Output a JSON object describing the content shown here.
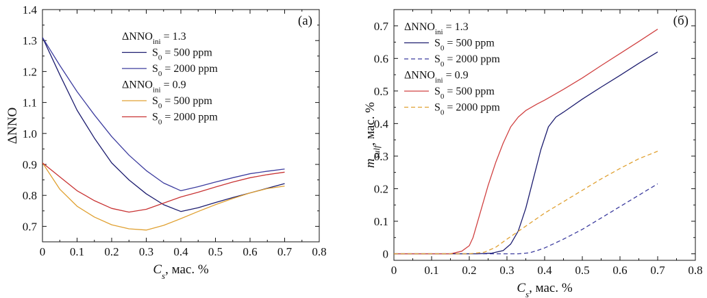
{
  "chart_data": [
    {
      "type": "line",
      "panel_label": "(a)",
      "xlabel": "C_s, мас. %",
      "xlabel_main": "C",
      "xlabel_sub": "s",
      "xlabel_rest": ", мас. %",
      "ylabel": "ΔNNO",
      "xlim": [
        0,
        0.8
      ],
      "ylim": [
        0.65,
        1.4
      ],
      "xticks": [
        "0",
        "0.1",
        "0.2",
        "0.3",
        "0.4",
        "0.5",
        "0.6",
        "0.7",
        "0.8"
      ],
      "yticks": [
        "0.7",
        "0.8",
        "0.9",
        "1.0",
        "1.1",
        "1.2",
        "1.3",
        "1.4"
      ],
      "legend": {
        "position": "top-right",
        "groups": [
          {
            "title": "ΔNNO",
            "title_sub": "ini",
            "title_rest": " = 1.3"
          },
          {
            "title": "ΔNNO",
            "title_sub": "ini",
            "title_rest": " = 0.9"
          }
        ],
        "entries": [
          {
            "prefix": "S",
            "sub": "0",
            "rest": " = 500 ppm"
          },
          {
            "prefix": "S",
            "sub": "0",
            "rest": " = 2000 ppm"
          },
          {
            "prefix": "S",
            "sub": "0",
            "rest": " = 500 ppm"
          },
          {
            "prefix": "S",
            "sub": "0",
            "rest": " = 2000 ppm"
          }
        ]
      },
      "series": [
        {
          "color": "#1b1b6e",
          "dash": "solid",
          "x": [
            0,
            0.05,
            0.1,
            0.15,
            0.2,
            0.25,
            0.3,
            0.35,
            0.4,
            0.45,
            0.5,
            0.55,
            0.6,
            0.65,
            0.7
          ],
          "y": [
            1.31,
            1.19,
            1.075,
            0.985,
            0.905,
            0.85,
            0.805,
            0.77,
            0.748,
            0.76,
            0.777,
            0.793,
            0.808,
            0.823,
            0.838
          ]
        },
        {
          "color": "#3b3b9e",
          "dash": "solid",
          "x": [
            0,
            0.05,
            0.1,
            0.15,
            0.2,
            0.25,
            0.3,
            0.35,
            0.4,
            0.45,
            0.5,
            0.55,
            0.6,
            0.65,
            0.7
          ],
          "y": [
            1.31,
            1.22,
            1.135,
            1.06,
            0.99,
            0.93,
            0.88,
            0.84,
            0.815,
            0.828,
            0.843,
            0.857,
            0.87,
            0.878,
            0.885
          ]
        },
        {
          "color": "#e0a030",
          "dash": "solid",
          "x": [
            0,
            0.05,
            0.1,
            0.15,
            0.2,
            0.25,
            0.3,
            0.35,
            0.4,
            0.45,
            0.5,
            0.55,
            0.6,
            0.65,
            0.7
          ],
          "y": [
            0.905,
            0.82,
            0.765,
            0.73,
            0.705,
            0.692,
            0.688,
            0.703,
            0.725,
            0.748,
            0.77,
            0.79,
            0.808,
            0.822,
            0.83
          ]
        },
        {
          "color": "#c83232",
          "dash": "solid",
          "x": [
            0,
            0.05,
            0.1,
            0.15,
            0.2,
            0.25,
            0.3,
            0.35,
            0.4,
            0.45,
            0.5,
            0.55,
            0.6,
            0.65,
            0.7
          ],
          "y": [
            0.905,
            0.86,
            0.815,
            0.783,
            0.758,
            0.746,
            0.755,
            0.775,
            0.795,
            0.81,
            0.827,
            0.843,
            0.857,
            0.867,
            0.875
          ]
        }
      ]
    },
    {
      "type": "line",
      "panel_label": "(б)",
      "xlabel": "C_s, мас. %",
      "xlabel_main": "C",
      "xlabel_sub": "s",
      "xlabel_rest": ", мас. %",
      "ylabel": "m_sulf, мас. %",
      "ylabel_main": "m",
      "ylabel_sub": "sulf",
      "ylabel_rest": ", мас. %",
      "xlim": [
        0,
        0.8
      ],
      "ylim": [
        -0.02,
        0.75
      ],
      "xticks": [
        "0",
        "0.1",
        "0.2",
        "0.3",
        "0.4",
        "0.5",
        "0.6",
        "0.7",
        "0.8"
      ],
      "yticks": [
        "0",
        "0.1",
        "0.2",
        "0.3",
        "0.4",
        "0.5",
        "0.6",
        "0.7"
      ],
      "legend": {
        "position": "top-left",
        "groups": [
          {
            "title": "ΔNNO",
            "title_sub": "ini",
            "title_rest": " = 1.3"
          },
          {
            "title": "ΔNNO",
            "title_sub": "ini",
            "title_rest": " = 0.9"
          }
        ],
        "entries": [
          {
            "prefix": "S",
            "sub": "0",
            "rest": " = 500 ppm"
          },
          {
            "prefix": "S",
            "sub": "0",
            "rest": " = 2000 ppm"
          },
          {
            "prefix": "S",
            "sub": "0",
            "rest": " = 500 ppm"
          },
          {
            "prefix": "S",
            "sub": "0",
            "rest": " = 2000 ppm"
          }
        ]
      },
      "series": [
        {
          "color": "#1b1b6e",
          "dash": "solid",
          "x": [
            0,
            0.22,
            0.26,
            0.29,
            0.31,
            0.33,
            0.35,
            0.37,
            0.39,
            0.41,
            0.43,
            0.45,
            0.5,
            0.55,
            0.6,
            0.65,
            0.7
          ],
          "y": [
            0,
            0,
            0.002,
            0.01,
            0.03,
            0.07,
            0.14,
            0.23,
            0.32,
            0.39,
            0.42,
            0.435,
            0.475,
            0.512,
            0.548,
            0.585,
            0.62
          ]
        },
        {
          "color": "#3b3b9e",
          "dash": "dashed",
          "x": [
            0,
            0.33,
            0.36,
            0.38,
            0.4,
            0.45,
            0.5,
            0.55,
            0.6,
            0.65,
            0.7
          ],
          "y": [
            0,
            0,
            0.003,
            0.01,
            0.018,
            0.045,
            0.075,
            0.11,
            0.145,
            0.18,
            0.215
          ]
        },
        {
          "color": "#d04040",
          "dash": "solid",
          "x": [
            0,
            0.15,
            0.18,
            0.2,
            0.21,
            0.23,
            0.25,
            0.27,
            0.29,
            0.31,
            0.33,
            0.35,
            0.38,
            0.4,
            0.45,
            0.5,
            0.55,
            0.6,
            0.65,
            0.7
          ],
          "y": [
            0,
            0,
            0.008,
            0.025,
            0.05,
            0.13,
            0.21,
            0.28,
            0.34,
            0.39,
            0.42,
            0.44,
            0.46,
            0.472,
            0.505,
            0.54,
            0.578,
            0.615,
            0.652,
            0.69
          ]
        },
        {
          "color": "#e0a030",
          "dash": "dashed",
          "x": [
            0,
            0.2,
            0.24,
            0.27,
            0.3,
            0.35,
            0.4,
            0.45,
            0.5,
            0.55,
            0.6,
            0.65,
            0.7
          ],
          "y": [
            0,
            0,
            0.005,
            0.02,
            0.045,
            0.085,
            0.125,
            0.16,
            0.195,
            0.23,
            0.262,
            0.292,
            0.315
          ]
        }
      ]
    }
  ]
}
